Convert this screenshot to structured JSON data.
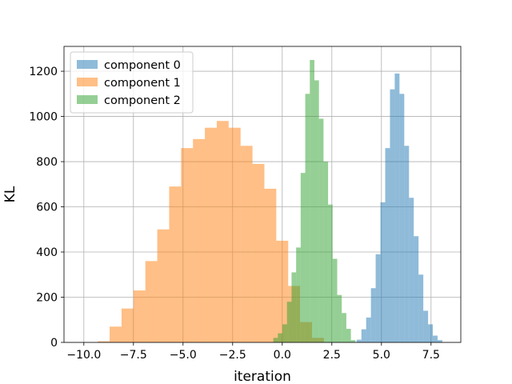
{
  "chart_data": {
    "type": "bar",
    "subtype": "histogram",
    "title": "",
    "xlabel": "iteration",
    "ylabel": "KL",
    "xlim": [
      -11.0,
      9.0
    ],
    "ylim": [
      0,
      1310
    ],
    "x_ticks": [
      -10.0,
      -7.5,
      -5.0,
      -2.5,
      0.0,
      2.5,
      5.0,
      7.5
    ],
    "x_tick_labels": [
      "−10.0",
      "−7.5",
      "−5.0",
      "−2.5",
      "0.0",
      "2.5",
      "5.0",
      "7.5"
    ],
    "y_ticks": [
      0,
      200,
      400,
      600,
      800,
      1000,
      1200
    ],
    "y_tick_labels": [
      "0",
      "200",
      "400",
      "600",
      "800",
      "1000",
      "1200"
    ],
    "grid": true,
    "legend_position": "top-left",
    "bar_alpha": 0.5,
    "series": [
      {
        "name": "component 0",
        "color": "#1f77b4",
        "bin_edges": [
          3.75,
          3.99,
          4.23,
          4.47,
          4.71,
          4.95,
          5.19,
          5.43,
          5.67,
          5.91,
          6.15,
          6.39,
          6.63,
          6.87,
          7.11,
          7.35,
          7.59,
          7.83,
          8.07
        ],
        "counts": [
          12,
          58,
          110,
          240,
          390,
          620,
          860,
          1120,
          1190,
          1100,
          870,
          640,
          470,
          300,
          140,
          80,
          30,
          10
        ]
      },
      {
        "name": "component 1",
        "color": "#ff7f0e",
        "bin_edges": [
          -9.3,
          -8.7,
          -8.1,
          -7.5,
          -6.9,
          -6.3,
          -5.7,
          -5.1,
          -4.5,
          -3.9,
          -3.3,
          -2.7,
          -2.1,
          -1.5,
          -0.9,
          -0.3,
          0.3,
          0.9,
          1.5,
          2.1
        ],
        "counts": [
          5,
          70,
          150,
          230,
          360,
          500,
          690,
          860,
          900,
          950,
          980,
          950,
          870,
          790,
          680,
          450,
          250,
          90,
          20
        ]
      },
      {
        "name": "component 2",
        "color": "#2ca02c",
        "bin_edges": [
          -0.45,
          -0.22,
          0.01,
          0.24,
          0.47,
          0.7,
          0.93,
          1.16,
          1.39,
          1.62,
          1.85,
          2.08,
          2.31,
          2.54,
          2.77,
          3.0,
          3.23,
          3.46,
          3.69
        ],
        "counts": [
          20,
          40,
          80,
          180,
          310,
          420,
          750,
          1100,
          1250,
          1160,
          990,
          800,
          610,
          370,
          210,
          130,
          60,
          10
        ]
      }
    ]
  }
}
